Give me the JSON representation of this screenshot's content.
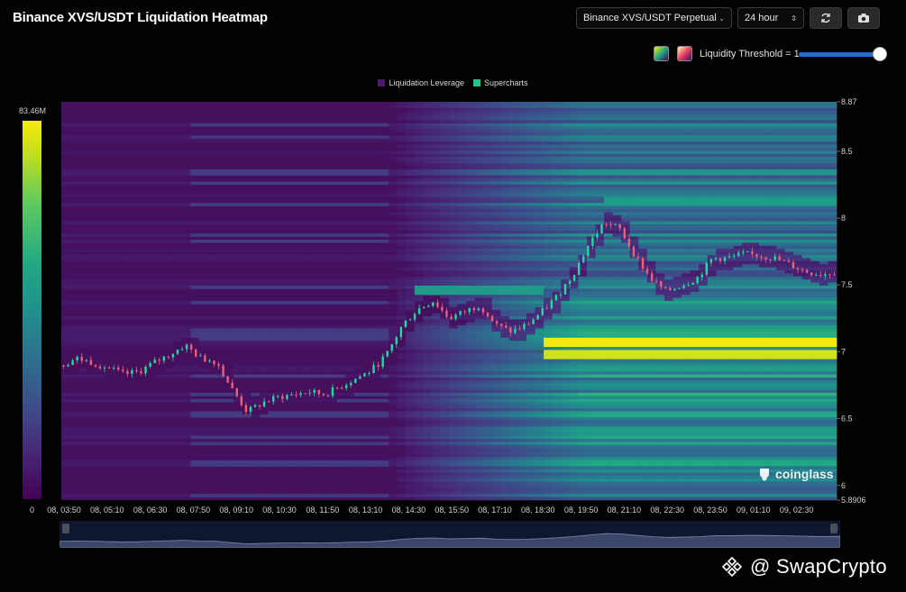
{
  "header": {
    "title": "Binance XVS/USDT Liquidation Heatmap",
    "pair_select": "Binance XVS/USDT Perpetual",
    "range_select": "24 hour",
    "refresh_icon": "refresh-icon",
    "camera_icon": "camera-icon"
  },
  "controls": {
    "threshold_label": "Liquidity Threshold = 1",
    "threshold_value": 1.0,
    "palette_viridis_icon": "viridis-palette-icon",
    "palette_magma_icon": "magma-palette-icon"
  },
  "legend": {
    "items": [
      {
        "label": "Liquidation Leverage",
        "color": "#4a1a6b"
      },
      {
        "label": "Supercharts",
        "color": "#22c38e"
      }
    ]
  },
  "colorbar": {
    "max_label": "83.46M",
    "min_label": "0"
  },
  "watermark": "coinglass",
  "brand": "@ SwapCrypto",
  "chart_data": {
    "type": "heatmap",
    "title": "Binance XVS/USDT Liquidation Heatmap",
    "ylim": [
      5.8906,
      8.87
    ],
    "y_ticks": [
      "8.87",
      "8.5",
      "8",
      "7.5",
      "7",
      "6.5",
      "6",
      "5.8906"
    ],
    "x_ticks": [
      "08, 03:50",
      "08, 05:10",
      "08, 06:30",
      "08, 07:50",
      "08, 09:10",
      "08, 10:30",
      "08, 11:50",
      "08, 13:10",
      "08, 14:30",
      "08, 15:50",
      "08, 17:10",
      "08, 18:30",
      "08, 19:50",
      "08, 21:10",
      "08, 22:30",
      "08, 23:50",
      "09, 01:10",
      "09, 02:30"
    ],
    "price_series": {
      "approx_close": [
        6.9,
        6.95,
        6.92,
        6.88,
        6.83,
        6.85,
        6.92,
        6.98,
        7.05,
        6.95,
        6.93,
        6.72,
        6.55,
        6.62,
        6.66,
        6.68,
        6.7,
        6.68,
        6.74,
        6.8,
        6.86,
        6.98,
        7.2,
        7.32,
        7.38,
        7.25,
        7.3,
        7.35,
        7.2,
        7.15,
        7.2,
        7.3,
        7.42,
        7.58,
        7.8,
        7.97,
        7.92,
        7.72,
        7.55,
        7.45,
        7.5,
        7.55,
        7.7,
        7.7,
        7.73,
        7.72,
        7.7,
        7.65,
        7.6,
        7.58,
        7.6
      ]
    },
    "bands": [
      {
        "price": 8.12,
        "intensity": 0.55
      },
      {
        "price": 7.08,
        "intensity": 1.0
      },
      {
        "price": 6.98,
        "intensity": 0.9
      },
      {
        "price": 7.45,
        "intensity": 0.55
      }
    ],
    "colorbar_range": [
      0,
      83460000
    ]
  }
}
